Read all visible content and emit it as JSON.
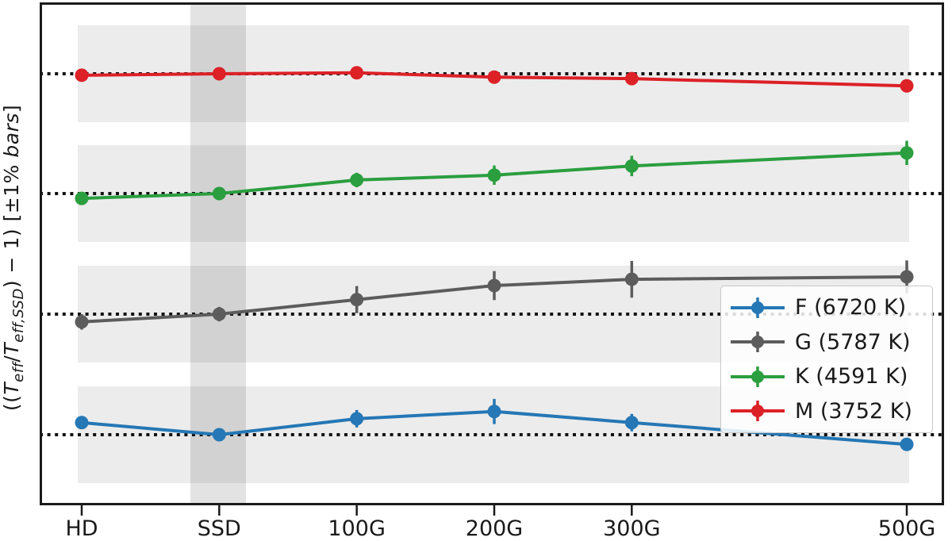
{
  "colors": {
    "band": "rgba(0,0,0,0.075)",
    "highlight_band": "rgba(0,0,0,0.11)",
    "spine": "#1a1a1a",
    "dotted_line": "#111111",
    "tick_label": "#191919"
  },
  "chart_data": {
    "type": "line",
    "title": "",
    "xlabel": "",
    "ylabel": "((T_eff/T_eff,SSD) − 1)  [±1% bars]",
    "ylabel_rich": [
      {
        "t": "(("
      },
      {
        "t": "T",
        "i": 1
      },
      {
        "t": "eff",
        "i": 1,
        "sub": 1
      },
      {
        "t": "/"
      },
      {
        "t": "T",
        "i": 1
      },
      {
        "t": "eff,SSD",
        "i": 1,
        "sub": 1
      },
      {
        "t": ") − 1)"
      },
      {
        "t": "   ["
      },
      {
        "t": "±1% "
      },
      {
        "t": "bars",
        "i": 1
      },
      {
        "t": "]"
      }
    ],
    "categories": [
      "HD",
      "SSD",
      "100G",
      "200G",
      "300G",
      "500G"
    ],
    "x_numeric_positions": [
      0,
      1,
      2,
      3,
      4,
      6
    ],
    "y_units": "fractional deviation of Teff from SSD value, percent",
    "reference_line_value_pct": 0,
    "shaded_band_halfwidth_pct": 1.0,
    "highlighted_category": "SSD",
    "grid": false,
    "legend_position": "center-right",
    "series": [
      {
        "key": "F",
        "label": "F (6720 K)",
        "teff_k": 6720,
        "color": "#2577b5",
        "values_pct": [
          0.25,
          0.0,
          0.33,
          0.48,
          0.25,
          -0.2
        ],
        "errors_pct": [
          0.13,
          0.1,
          0.18,
          0.26,
          0.18,
          0.13
        ]
      },
      {
        "key": "G",
        "label": "G (5787 K)",
        "teff_k": 5787,
        "color": "#5c5c5c",
        "values_pct": [
          -0.16,
          0.0,
          0.3,
          0.59,
          0.72,
          0.77
        ],
        "errors_pct": [
          0.16,
          0.15,
          0.28,
          0.3,
          0.38,
          0.34
        ]
      },
      {
        "key": "K",
        "label": "K (4591 K)",
        "teff_k": 4591,
        "color": "#2b9e3f",
        "values_pct": [
          -0.1,
          0.0,
          0.28,
          0.38,
          0.57,
          0.84
        ],
        "errors_pct": [
          0.13,
          0.11,
          0.15,
          0.2,
          0.21,
          0.25
        ]
      },
      {
        "key": "M",
        "label": "M (3752 K)",
        "teff_k": 3752,
        "color": "#dc2127",
        "values_pct": [
          -0.03,
          0.0,
          0.02,
          -0.07,
          -0.1,
          -0.25
        ],
        "errors_pct": [
          0.1,
          0.1,
          0.11,
          0.1,
          0.11,
          0.13
        ]
      }
    ]
  }
}
